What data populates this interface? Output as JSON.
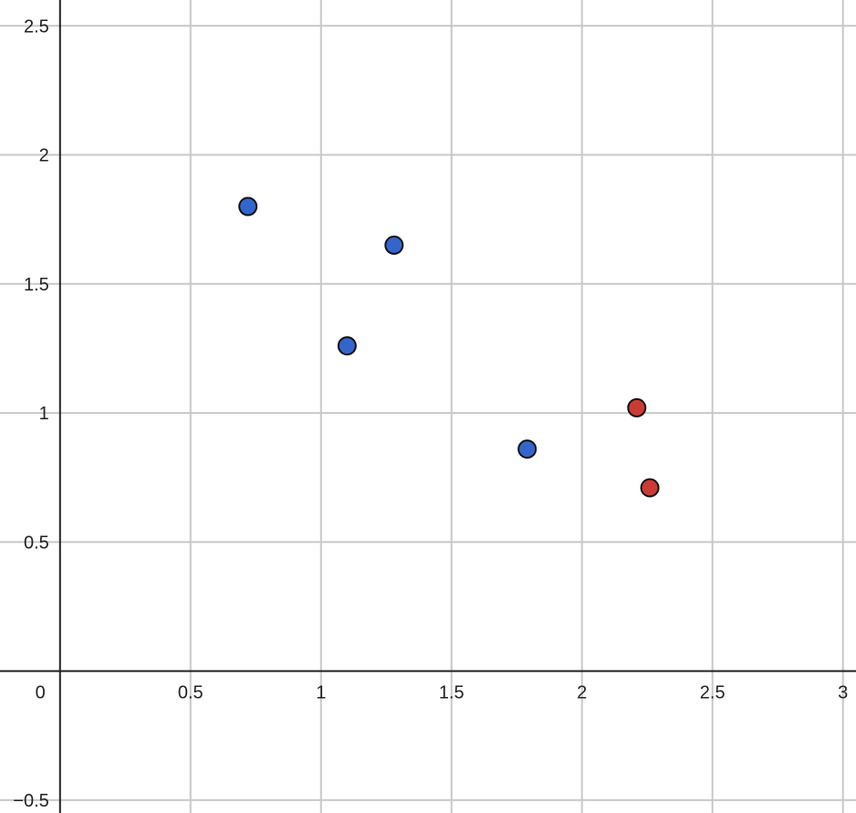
{
  "chart_data": {
    "type": "scatter",
    "title": "",
    "xlabel": "",
    "ylabel": "",
    "xlim": [
      -0.23,
      3.05
    ],
    "ylim": [
      -0.55,
      2.6
    ],
    "grid": true,
    "x_ticks": [
      0.5,
      1,
      1.5,
      2,
      2.5,
      3
    ],
    "x_tick_labels": [
      "0.5",
      "1",
      "1.5",
      "2",
      "2.5",
      "3"
    ],
    "y_ticks": [
      -0.5,
      0.5,
      1,
      1.5,
      2,
      2.5
    ],
    "y_tick_labels": [
      "−0.5",
      "0.5",
      "1",
      "1.5",
      "2",
      "2.5"
    ],
    "origin_label": "0",
    "series": [
      {
        "color": "#3366cc",
        "points": [
          {
            "x": 0.72,
            "y": 1.8
          },
          {
            "x": 1.28,
            "y": 1.65
          },
          {
            "x": 1.1,
            "y": 1.26
          },
          {
            "x": 1.79,
            "y": 0.86
          }
        ]
      },
      {
        "color": "#cc3b33",
        "points": [
          {
            "x": 2.21,
            "y": 1.02
          },
          {
            "x": 2.26,
            "y": 0.71
          }
        ]
      }
    ]
  }
}
